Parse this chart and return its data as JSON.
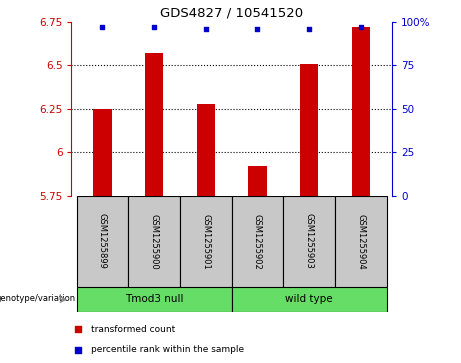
{
  "title": "GDS4827 / 10541520",
  "samples": [
    "GSM1255899",
    "GSM1255900",
    "GSM1255901",
    "GSM1255902",
    "GSM1255903",
    "GSM1255904"
  ],
  "transformed_counts": [
    6.25,
    6.57,
    6.28,
    5.92,
    6.51,
    6.72
  ],
  "percentile_ranks": [
    97,
    97,
    96,
    96,
    96,
    97
  ],
  "bar_color": "#CC0000",
  "dot_color": "#0000CC",
  "ylim_left": [
    5.75,
    6.75
  ],
  "ylim_right": [
    0,
    100
  ],
  "yticks_left": [
    5.75,
    6.0,
    6.25,
    6.5,
    6.75
  ],
  "yticks_right": [
    0,
    25,
    50,
    75,
    100
  ],
  "ytick_labels_left": [
    "5.75",
    "6",
    "6.25",
    "6.5",
    "6.75"
  ],
  "ytick_labels_right": [
    "0",
    "25",
    "50",
    "75",
    "100%"
  ],
  "grid_values": [
    6.0,
    6.25,
    6.5
  ],
  "sample_box_color": "#c8c8c8",
  "tmod3_null_color": "#66DD66",
  "wild_type_color": "#66DD66",
  "legend_items": [
    "transformed count",
    "percentile rank within the sample"
  ],
  "legend_colors": [
    "#CC0000",
    "#0000CC"
  ],
  "bar_width": 0.35
}
